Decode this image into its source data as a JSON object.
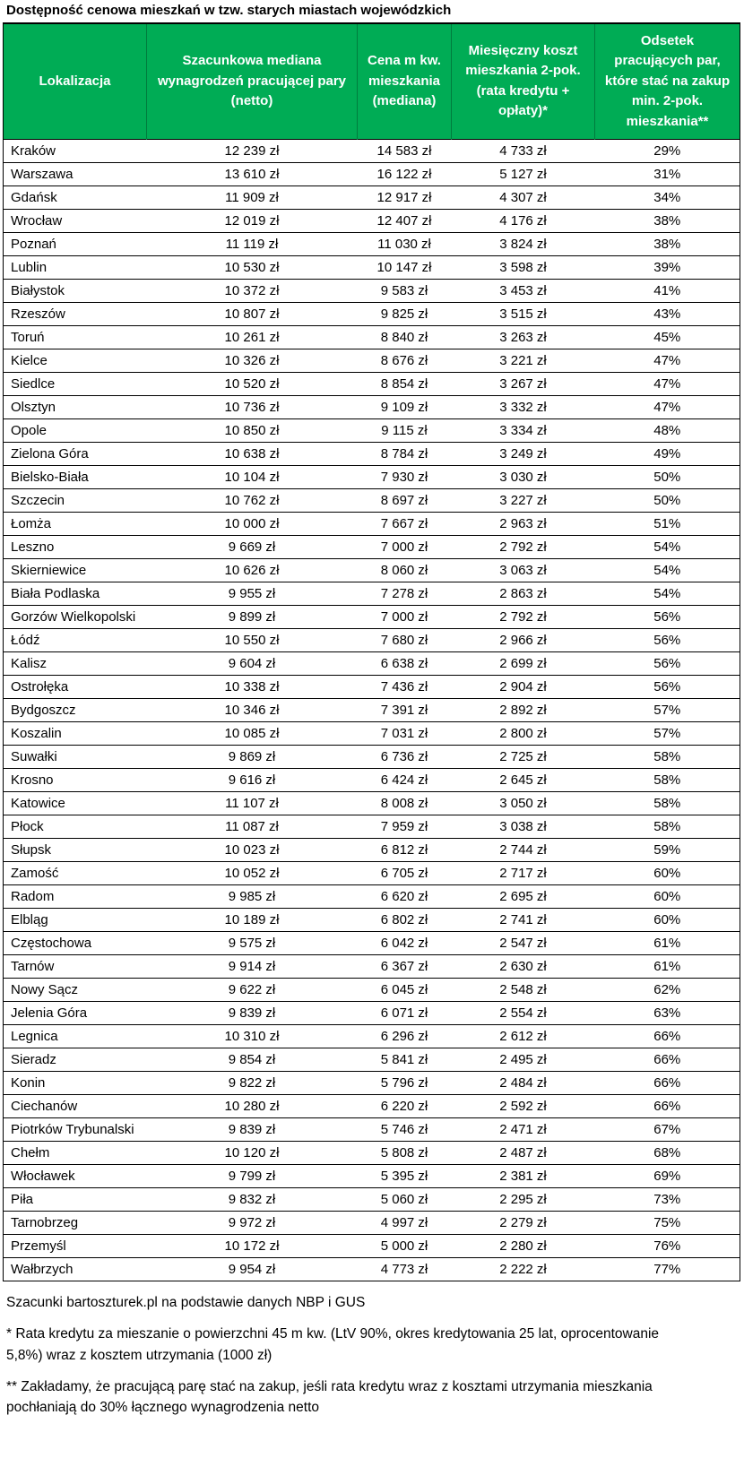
{
  "title": "Dostępność cenowa mieszkań w tzw. starych miastach wojewódzkich",
  "colors": {
    "header_bg": "#00AC55",
    "header_text": "#FFFFFF",
    "row_border": "#000000",
    "text": "#000000",
    "background": "#FFFFFF"
  },
  "chart_data": {
    "type": "table",
    "title": "Dostępność cenowa mieszkań w tzw. starych miastach wojewódzkich",
    "columns": [
      "Lokalizacja",
      "Szacunkowa mediana wynagrodzeń pracującej pary (netto)",
      "Cena m kw. mieszkania (mediana)",
      "Miesięczny koszt mieszkania 2-pok. (rata kredytu + opłaty)*",
      "Odsetek pracujących par, które stać na zakup min. 2-pok. mieszkania**"
    ],
    "rows": [
      [
        "Kraków",
        "12 239 zł",
        "14 583 zł",
        "4 733 zł",
        "29%"
      ],
      [
        "Warszawa",
        "13 610 zł",
        "16 122 zł",
        "5 127 zł",
        "31%"
      ],
      [
        "Gdańsk",
        "11 909 zł",
        "12 917 zł",
        "4 307 zł",
        "34%"
      ],
      [
        "Wrocław",
        "12 019 zł",
        "12 407 zł",
        "4 176 zł",
        "38%"
      ],
      [
        "Poznań",
        "11 119 zł",
        "11 030 zł",
        "3 824 zł",
        "38%"
      ],
      [
        "Lublin",
        "10 530 zł",
        "10 147 zł",
        "3 598 zł",
        "39%"
      ],
      [
        "Białystok",
        "10 372 zł",
        "9 583 zł",
        "3 453 zł",
        "41%"
      ],
      [
        "Rzeszów",
        "10 807 zł",
        "9 825 zł",
        "3 515 zł",
        "43%"
      ],
      [
        "Toruń",
        "10 261 zł",
        "8 840 zł",
        "3 263 zł",
        "45%"
      ],
      [
        "Kielce",
        "10 326 zł",
        "8 676 zł",
        "3 221 zł",
        "47%"
      ],
      [
        "Siedlce",
        "10 520 zł",
        "8 854 zł",
        "3 267 zł",
        "47%"
      ],
      [
        "Olsztyn",
        "10 736 zł",
        "9 109 zł",
        "3 332 zł",
        "47%"
      ],
      [
        "Opole",
        "10 850 zł",
        "9 115 zł",
        "3 334 zł",
        "48%"
      ],
      [
        "Zielona Góra",
        "10 638 zł",
        "8 784 zł",
        "3 249 zł",
        "49%"
      ],
      [
        "Bielsko-Biała",
        "10 104 zł",
        "7 930 zł",
        "3 030 zł",
        "50%"
      ],
      [
        "Szczecin",
        "10 762 zł",
        "8 697 zł",
        "3 227 zł",
        "50%"
      ],
      [
        "Łomża",
        "10 000 zł",
        "7 667 zł",
        "2 963 zł",
        "51%"
      ],
      [
        "Leszno",
        "9 669 zł",
        "7 000 zł",
        "2 792 zł",
        "54%"
      ],
      [
        "Skierniewice",
        "10 626 zł",
        "8 060 zł",
        "3 063 zł",
        "54%"
      ],
      [
        "Biała Podlaska",
        "9 955 zł",
        "7 278 zł",
        "2 863 zł",
        "54%"
      ],
      [
        "Gorzów Wielkopolski",
        "9 899 zł",
        "7 000 zł",
        "2 792 zł",
        "56%"
      ],
      [
        "Łódź",
        "10 550 zł",
        "7 680 zł",
        "2 966 zł",
        "56%"
      ],
      [
        "Kalisz",
        "9 604 zł",
        "6 638 zł",
        "2 699 zł",
        "56%"
      ],
      [
        "Ostrołęka",
        "10 338 zł",
        "7 436 zł",
        "2 904 zł",
        "56%"
      ],
      [
        "Bydgoszcz",
        "10 346 zł",
        "7 391 zł",
        "2 892 zł",
        "57%"
      ],
      [
        "Koszalin",
        "10 085 zł",
        "7 031 zł",
        "2 800 zł",
        "57%"
      ],
      [
        "Suwałki",
        "9 869 zł",
        "6 736 zł",
        "2 725 zł",
        "58%"
      ],
      [
        "Krosno",
        "9 616 zł",
        "6 424 zł",
        "2 645 zł",
        "58%"
      ],
      [
        "Katowice",
        "11 107 zł",
        "8 008 zł",
        "3 050 zł",
        "58%"
      ],
      [
        "Płock",
        "11 087 zł",
        "7 959 zł",
        "3 038 zł",
        "58%"
      ],
      [
        "Słupsk",
        "10 023 zł",
        "6 812 zł",
        "2 744 zł",
        "59%"
      ],
      [
        "Zamość",
        "10 052 zł",
        "6 705 zł",
        "2 717 zł",
        "60%"
      ],
      [
        "Radom",
        "9 985 zł",
        "6 620 zł",
        "2 695 zł",
        "60%"
      ],
      [
        "Elbląg",
        "10 189 zł",
        "6 802 zł",
        "2 741 zł",
        "60%"
      ],
      [
        "Częstochowa",
        "9 575 zł",
        "6 042 zł",
        "2 547 zł",
        "61%"
      ],
      [
        "Tarnów",
        "9 914 zł",
        "6 367 zł",
        "2 630 zł",
        "61%"
      ],
      [
        "Nowy Sącz",
        "9 622 zł",
        "6 045 zł",
        "2 548 zł",
        "62%"
      ],
      [
        "Jelenia Góra",
        "9 839 zł",
        "6 071 zł",
        "2 554 zł",
        "63%"
      ],
      [
        "Legnica",
        "10 310 zł",
        "6 296 zł",
        "2 612 zł",
        "66%"
      ],
      [
        "Sieradz",
        "9 854 zł",
        "5 841 zł",
        "2 495 zł",
        "66%"
      ],
      [
        "Konin",
        "9 822 zł",
        "5 796 zł",
        "2 484 zł",
        "66%"
      ],
      [
        "Ciechanów",
        "10 280 zł",
        "6 220 zł",
        "2 592 zł",
        "66%"
      ],
      [
        "Piotrków Trybunalski",
        "9 839 zł",
        "5 746 zł",
        "2 471 zł",
        "67%"
      ],
      [
        "Chełm",
        "10 120 zł",
        "5 808 zł",
        "2 487 zł",
        "68%"
      ],
      [
        "Włocławek",
        "9 799 zł",
        "5 395 zł",
        "2 381 zł",
        "69%"
      ],
      [
        "Piła",
        "9 832 zł",
        "5 060 zł",
        "2 295 zł",
        "73%"
      ],
      [
        "Tarnobrzeg",
        "9 972 zł",
        "4 997 zł",
        "2 279 zł",
        "75%"
      ],
      [
        "Przemyśl",
        "10 172 zł",
        "5 000 zł",
        "2 280 zł",
        "76%"
      ],
      [
        "Wałbrzych",
        "9 954 zł",
        "4 773 zł",
        "2 222 zł",
        "77%"
      ]
    ]
  },
  "footer": {
    "source": "Szacunki bartoszturek.pl na podstawie danych NBP i GUS",
    "footnote1": "* Rata kredytu za mieszanie o powierzchni 45 m kw. (LtV 90%, okres kredytowania 25 lat, oprocentowanie 5,8%) wraz z kosztem utrzymania (1000 zł)",
    "footnote2": "** Zakładamy, że pracującą parę stać na zakup, jeśli rata kredytu wraz z kosztami utrzymania mieszkania pochłaniają do 30% łącznego wynagrodzenia netto"
  }
}
